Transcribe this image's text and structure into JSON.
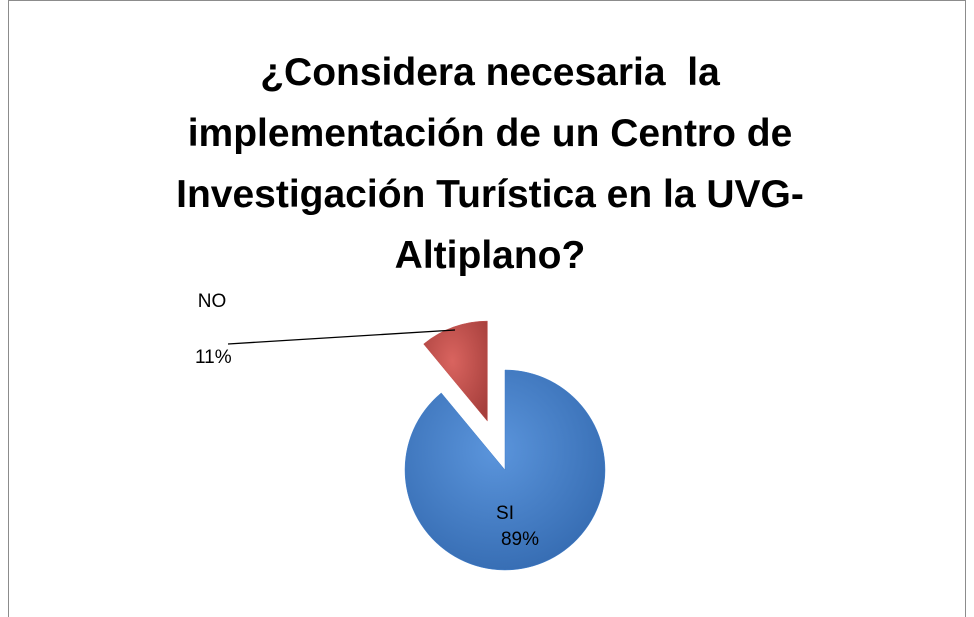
{
  "chart_data": {
    "type": "pie",
    "title": "¿Considera necesaria  la implementación de un Centro de Investigación Turística en la UVG-Altiplano?",
    "categories": [
      "SI",
      "NO"
    ],
    "values": [
      89,
      11
    ],
    "value_labels": [
      "89%",
      "11%"
    ],
    "colors": [
      "#3e7cc9",
      "#c0504d"
    ]
  }
}
